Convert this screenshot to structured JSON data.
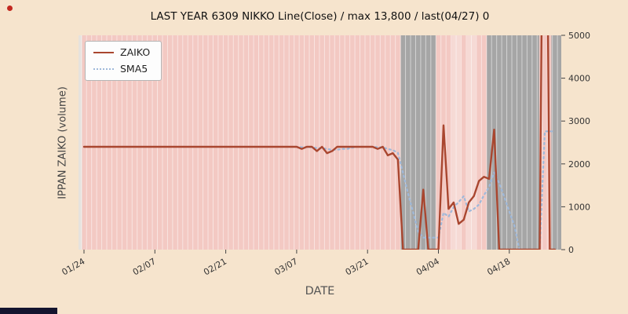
{
  "chart_data": {
    "type": "line",
    "title": "LAST YEAR 6309 NIKKO Line(Close) / max 13,800 / last(04/27) 0",
    "xlabel": "DATE",
    "ylabel": "IPPAN ZAIKO (volume)",
    "ylim": [
      0,
      5000
    ],
    "y_ticks": [
      0,
      1000,
      2000,
      3000,
      4000,
      5000
    ],
    "x_ticks": [
      {
        "day": 0,
        "label": "01/24"
      },
      {
        "day": 14,
        "label": "02/07"
      },
      {
        "day": 28,
        "label": "02/21"
      },
      {
        "day": 42,
        "label": "03/07"
      },
      {
        "day": 56,
        "label": "03/21"
      },
      {
        "day": 70,
        "label": "04/04"
      },
      {
        "day": 84,
        "label": "04/18"
      }
    ],
    "day_count": 94,
    "plot_bg": "#f3c9c3",
    "legend_position": "upper-left",
    "grid": "vertical-day-stripes",
    "bands": [
      {
        "from": -1.1,
        "to": -0.4,
        "color": "#e6e2dd"
      },
      {
        "from": 62.55,
        "to": 69.5,
        "color": "#a6a6a6"
      },
      {
        "from": 72.6,
        "to": 74.4,
        "color": "#f6dad5"
      },
      {
        "from": 75.6,
        "to": 77.4,
        "color": "#f6dad5"
      },
      {
        "from": 79.55,
        "to": 89.9,
        "color": "#a6a6a6"
      },
      {
        "from": 92.3,
        "to": 94.3,
        "color": "#a6a6a6"
      }
    ],
    "legend": [
      {
        "name": "ZAIKO",
        "color": "#a9462f",
        "style": "solid"
      },
      {
        "name": "SMA5",
        "color": "#9fb9da",
        "style": "dotted"
      }
    ],
    "series": [
      {
        "name": "ZAIKO",
        "color": "#a9462f",
        "style": "solid",
        "values": [
          2400,
          2400,
          2400,
          2400,
          2400,
          2400,
          2400,
          2400,
          2400,
          2400,
          2400,
          2400,
          2400,
          2400,
          2400,
          2400,
          2400,
          2400,
          2400,
          2400,
          2400,
          2400,
          2400,
          2400,
          2400,
          2400,
          2400,
          2400,
          2400,
          2400,
          2400,
          2400,
          2400,
          2400,
          2400,
          2400,
          2400,
          2400,
          2400,
          2400,
          2400,
          2400,
          2400,
          2350,
          2400,
          2400,
          2300,
          2400,
          2250,
          2300,
          2400,
          2400,
          2400,
          2400,
          2400,
          2400,
          2400,
          2400,
          2350,
          2400,
          2200,
          2250,
          2100,
          0,
          0,
          0,
          0,
          1400,
          0,
          0,
          0,
          2900,
          950,
          1100,
          600,
          700,
          1100,
          1250,
          1600,
          1700,
          1650,
          2800,
          0,
          0,
          0,
          0,
          0,
          0,
          0,
          0,
          0,
          13800,
          0,
          0
        ]
      },
      {
        "name": "SMA5",
        "color": "#9fb9da",
        "style": "dotted",
        "values": [
          2400,
          2400,
          2400,
          2400,
          2400,
          2400,
          2400,
          2400,
          2400,
          2400,
          2400,
          2400,
          2400,
          2400,
          2400,
          2400,
          2400,
          2400,
          2400,
          2400,
          2400,
          2400,
          2400,
          2400,
          2400,
          2400,
          2400,
          2400,
          2400,
          2400,
          2400,
          2400,
          2400,
          2400,
          2400,
          2400,
          2400,
          2400,
          2400,
          2400,
          2400,
          2400,
          2400,
          2390,
          2390,
          2390,
          2370,
          2370,
          2350,
          2330,
          2330,
          2350,
          2350,
          2380,
          2400,
          2400,
          2400,
          2400,
          2390,
          2390,
          2350,
          2320,
          2260,
          1790,
          1310,
          870,
          420,
          280,
          280,
          280,
          280,
          860,
          770,
          990,
          1110,
          1250,
          890,
          950,
          1050,
          1270,
          1460,
          1800,
          1550,
          1230,
          890,
          560,
          0,
          0,
          0,
          0,
          0,
          2760,
          2760,
          2760
        ]
      }
    ]
  },
  "artifacts": {
    "record_dot_color": "#c2271f",
    "bottom_bar_color": "#14142e"
  }
}
